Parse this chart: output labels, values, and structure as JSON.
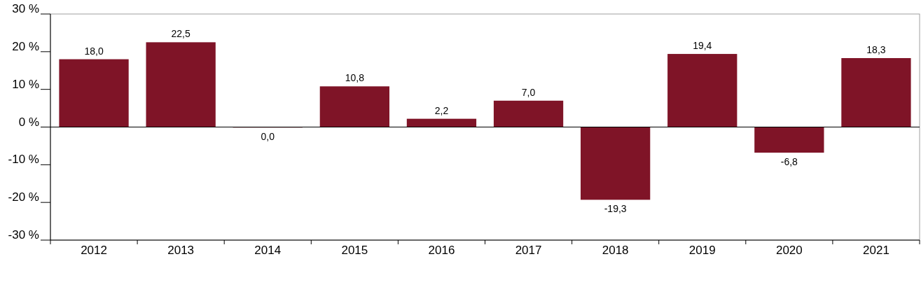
{
  "chart_data": {
    "type": "bar",
    "categories": [
      "2012",
      "2013",
      "2014",
      "2015",
      "2016",
      "2017",
      "2018",
      "2019",
      "2020",
      "2021"
    ],
    "series": [
      {
        "color": "#7f1427",
        "values": [
          18.0,
          22.5,
          0.0,
          10.8,
          2.2,
          7.0,
          -19.3,
          19.4,
          -6.8,
          18.3
        ],
        "value_labels": [
          "18,0",
          "22,5",
          "0,0",
          "10,8",
          "2,2",
          "7,0",
          "-19,3",
          "19,4",
          "-6,8",
          "18,3"
        ]
      }
    ],
    "ylim": [
      -30,
      30
    ],
    "yticks": [
      {
        "value": -30,
        "label": "-30 %"
      },
      {
        "value": -20,
        "label": "-20 %"
      },
      {
        "value": -10,
        "label": "-10 %"
      },
      {
        "value": 0,
        "label": "0 %"
      },
      {
        "value": 10,
        "label": "10 %"
      },
      {
        "value": 20,
        "label": "20 %"
      },
      {
        "value": 30,
        "label": "30 %"
      }
    ]
  }
}
